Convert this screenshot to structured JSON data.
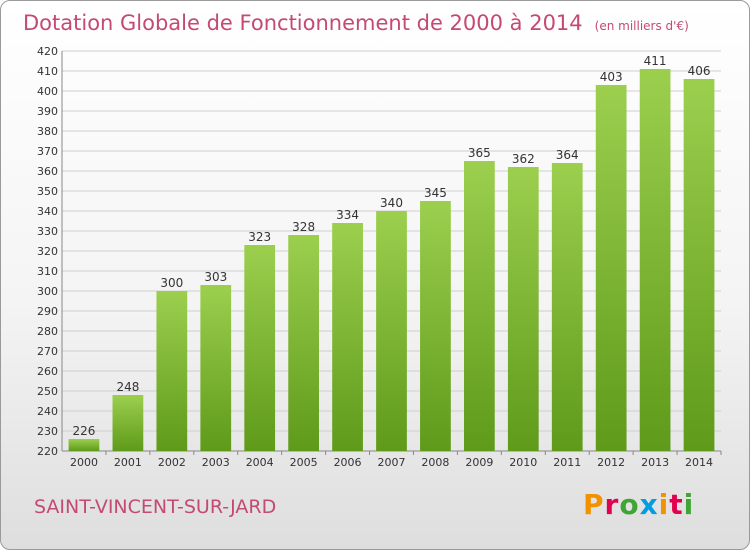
{
  "header": {
    "title": "Dotation Globale de Fonctionnement de 2000 à 2014",
    "subtitle": "(en milliers d'€)"
  },
  "footer": {
    "commune": "SAINT-VINCENT-SUR-JARD",
    "logo": "Proxiti"
  },
  "colors": {
    "title": "#c44a72",
    "bar_top": "#9ccf4e",
    "bar_bottom": "#5f9a1a",
    "grid": "#cfcfcf"
  },
  "chart_data": {
    "type": "bar",
    "title": "Dotation Globale de Fonctionnement de 2000 à 2014",
    "subtitle": "(en milliers d'€)",
    "categories": [
      "2000",
      "2001",
      "2002",
      "2003",
      "2004",
      "2005",
      "2006",
      "2007",
      "2008",
      "2009",
      "2010",
      "2011",
      "2012",
      "2013",
      "2014"
    ],
    "values": [
      226,
      248,
      300,
      303,
      323,
      328,
      334,
      340,
      345,
      365,
      362,
      364,
      403,
      411,
      406
    ],
    "ylim": [
      220,
      420
    ],
    "ytick_step": 10,
    "grid": true,
    "legend": "none",
    "data_labels": true
  }
}
